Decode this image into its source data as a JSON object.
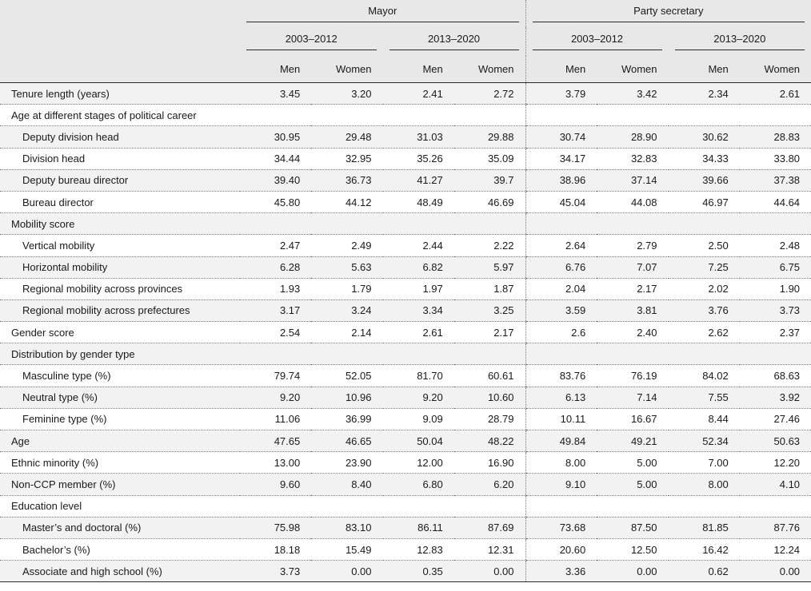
{
  "header": {
    "groups": [
      "Mayor",
      "Party secretary"
    ],
    "periods": [
      "2003–2012",
      "2013–2020",
      "2003–2012",
      "2013–2020"
    ],
    "genders": [
      "Men",
      "Women",
      "Men",
      "Women",
      "Men",
      "Women",
      "Men",
      "Women"
    ]
  },
  "rows": [
    {
      "label": "Tenure length (years)",
      "indent": false,
      "values": [
        "3.45",
        "3.20",
        "2.41",
        "2.72",
        "3.79",
        "3.42",
        "2.34",
        "2.61"
      ]
    },
    {
      "label": "Age at different stages of political career",
      "indent": false,
      "values": [
        "",
        "",
        "",
        "",
        "",
        "",
        "",
        ""
      ]
    },
    {
      "label": "Deputy division head",
      "indent": true,
      "values": [
        "30.95",
        "29.48",
        "31.03",
        "29.88",
        "30.74",
        "28.90",
        "30.62",
        "28.83"
      ]
    },
    {
      "label": "Division head",
      "indent": true,
      "values": [
        "34.44",
        "32.95",
        "35.26",
        "35.09",
        "34.17",
        "32.83",
        "34.33",
        "33.80"
      ]
    },
    {
      "label": "Deputy bureau director",
      "indent": true,
      "values": [
        "39.40",
        "36.73",
        "41.27",
        "39.7",
        "38.96",
        "37.14",
        "39.66",
        "37.38"
      ]
    },
    {
      "label": "Bureau director",
      "indent": true,
      "values": [
        "45.80",
        "44.12",
        "48.49",
        "46.69",
        "45.04",
        "44.08",
        "46.97",
        "44.64"
      ]
    },
    {
      "label": "Mobility score",
      "indent": false,
      "values": [
        "",
        "",
        "",
        "",
        "",
        "",
        "",
        ""
      ]
    },
    {
      "label": "Vertical mobility",
      "indent": true,
      "values": [
        "2.47",
        "2.49",
        "2.44",
        "2.22",
        "2.64",
        "2.79",
        "2.50",
        "2.48"
      ]
    },
    {
      "label": "Horizontal mobility",
      "indent": true,
      "values": [
        "6.28",
        "5.63",
        "6.82",
        "5.97",
        "6.76",
        "7.07",
        "7.25",
        "6.75"
      ]
    },
    {
      "label": "Regional mobility across provinces",
      "indent": true,
      "values": [
        "1.93",
        "1.79",
        "1.97",
        "1.87",
        "2.04",
        "2.17",
        "2.02",
        "1.90"
      ]
    },
    {
      "label": "Regional mobility across prefectures",
      "indent": true,
      "values": [
        "3.17",
        "3.24",
        "3.34",
        "3.25",
        "3.59",
        "3.81",
        "3.76",
        "3.73"
      ]
    },
    {
      "label": "Gender score",
      "indent": false,
      "values": [
        "2.54",
        "2.14",
        "2.61",
        "2.17",
        "2.6",
        "2.40",
        "2.62",
        "2.37"
      ]
    },
    {
      "label": "Distribution by gender type",
      "indent": false,
      "values": [
        "",
        "",
        "",
        "",
        "",
        "",
        "",
        ""
      ]
    },
    {
      "label": "Masculine type (%)",
      "indent": true,
      "values": [
        "79.74",
        "52.05",
        "81.70",
        "60.61",
        "83.76",
        "76.19",
        "84.02",
        "68.63"
      ]
    },
    {
      "label": "Neutral type (%)",
      "indent": true,
      "values": [
        "9.20",
        "10.96",
        "9.20",
        "10.60",
        "6.13",
        "7.14",
        "7.55",
        "3.92"
      ]
    },
    {
      "label": "Feminine type (%)",
      "indent": true,
      "values": [
        "11.06",
        "36.99",
        "9.09",
        "28.79",
        "10.11",
        "16.67",
        "8.44",
        "27.46"
      ]
    },
    {
      "label": "Age",
      "indent": false,
      "values": [
        "47.65",
        "46.65",
        "50.04",
        "48.22",
        "49.84",
        "49.21",
        "52.34",
        "50.63"
      ]
    },
    {
      "label": "Ethnic minority (%)",
      "indent": false,
      "values": [
        "13.00",
        "23.90",
        "12.00",
        "16.90",
        "8.00",
        "5.00",
        "7.00",
        "12.20"
      ]
    },
    {
      "label": "Non-CCP member (%)",
      "indent": false,
      "values": [
        "9.60",
        "8.40",
        "6.80",
        "6.20",
        "9.10",
        "5.00",
        "8.00",
        "4.10"
      ]
    },
    {
      "label": "Education level",
      "indent": false,
      "values": [
        "",
        "",
        "",
        "",
        "",
        "",
        "",
        ""
      ]
    },
    {
      "label": "Master’s and doctoral (%)",
      "indent": true,
      "values": [
        "75.98",
        "83.10",
        "86.11",
        "87.69",
        "73.68",
        "87.50",
        "81.85",
        "87.76"
      ]
    },
    {
      "label": "Bachelor’s (%)",
      "indent": true,
      "values": [
        "18.18",
        "15.49",
        "12.83",
        "12.31",
        "20.60",
        "12.50",
        "16.42",
        "12.24"
      ]
    },
    {
      "label": "Associate and high school (%)",
      "indent": true,
      "values": [
        "3.73",
        "0.00",
        "0.35",
        "0.00",
        "3.36",
        "0.00",
        "0.62",
        "0.00"
      ]
    }
  ]
}
